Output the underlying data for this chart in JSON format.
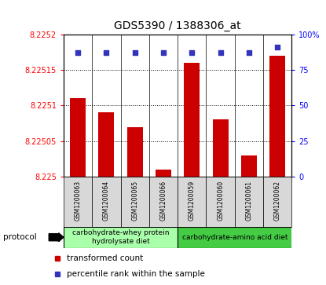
{
  "title": "GDS5390 / 1388306_at",
  "samples": [
    "GSM1200063",
    "GSM1200064",
    "GSM1200065",
    "GSM1200066",
    "GSM1200059",
    "GSM1200060",
    "GSM1200061",
    "GSM1200062"
  ],
  "bar_values": [
    8.22511,
    8.22509,
    8.22507,
    8.22501,
    8.22516,
    8.22508,
    8.22503,
    8.22517
  ],
  "percentile_values": [
    87,
    87,
    87,
    87,
    87,
    87,
    87,
    91
  ],
  "ylim_left": [
    8.225,
    8.2252
  ],
  "ylim_right": [
    0,
    100
  ],
  "yticks_left": [
    8.225,
    8.22505,
    8.2251,
    8.22515,
    8.2252
  ],
  "ytick_labels_left": [
    "8.225",
    "8.22505",
    "8.2251",
    "8.22515",
    "8.2252"
  ],
  "yticks_right": [
    0,
    25,
    50,
    75,
    100
  ],
  "ytick_labels_right": [
    "0",
    "25",
    "50",
    "75",
    "100%"
  ],
  "bar_color": "#cc0000",
  "dot_color": "#3333bb",
  "grid_color": "#000000",
  "protocol_groups": [
    {
      "label": "carbohydrate-whey protein\nhydrolysate diet",
      "start": 0,
      "end": 4,
      "color": "#aaffaa"
    },
    {
      "label": "carbohydrate-amino acid diet",
      "start": 4,
      "end": 8,
      "color": "#44cc44"
    }
  ],
  "legend_items": [
    {
      "label": "transformed count",
      "color": "#cc0000"
    },
    {
      "label": "percentile rank within the sample",
      "color": "#3333bb"
    }
  ],
  "protocol_label": "protocol",
  "title_fontsize": 10,
  "tick_fontsize": 7,
  "sample_fontsize": 5.5,
  "proto_fontsize": 6.5,
  "legend_fontsize": 7.5
}
